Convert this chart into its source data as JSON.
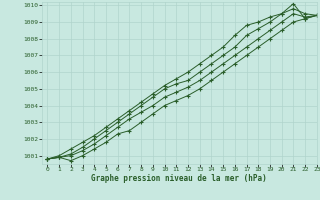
{
  "xlabel": "Graphe pression niveau de la mer (hPa)",
  "background_color": "#c8e8e0",
  "plot_bg_color": "#c8e8e0",
  "grid_color": "#b0d4cc",
  "line_color": "#2a5e2a",
  "xlim": [
    -0.5,
    23
  ],
  "ylim": [
    1000.5,
    1010.2
  ],
  "yticks": [
    1001,
    1002,
    1003,
    1004,
    1005,
    1006,
    1007,
    1008,
    1009,
    1010
  ],
  "xticks": [
    0,
    1,
    2,
    3,
    4,
    5,
    6,
    7,
    8,
    9,
    10,
    11,
    12,
    13,
    14,
    15,
    16,
    17,
    18,
    19,
    20,
    21,
    22,
    23
  ],
  "series": [
    [
      1000.8,
      1000.9,
      1000.7,
      1001.0,
      1001.4,
      1001.8,
      1002.3,
      1002.5,
      1003.0,
      1003.5,
      1004.0,
      1004.3,
      1004.6,
      1005.0,
      1005.5,
      1006.0,
      1006.5,
      1007.0,
      1007.5,
      1008.0,
      1008.5,
      1009.0,
      1009.2,
      1009.4
    ],
    [
      1000.8,
      1000.9,
      1001.0,
      1001.3,
      1001.7,
      1002.2,
      1002.7,
      1003.2,
      1003.6,
      1004.0,
      1004.5,
      1004.8,
      1005.1,
      1005.5,
      1006.0,
      1006.5,
      1007.0,
      1007.5,
      1008.0,
      1008.5,
      1009.0,
      1009.5,
      1009.3,
      1009.4
    ],
    [
      1000.8,
      1000.9,
      1001.1,
      1001.5,
      1002.0,
      1002.5,
      1003.0,
      1003.5,
      1004.0,
      1004.5,
      1005.0,
      1005.3,
      1005.5,
      1006.0,
      1006.5,
      1007.0,
      1007.5,
      1008.2,
      1008.6,
      1009.0,
      1009.5,
      1010.1,
      1009.2,
      1009.4
    ],
    [
      1000.8,
      1001.0,
      1001.4,
      1001.8,
      1002.2,
      1002.7,
      1003.2,
      1003.7,
      1004.2,
      1004.7,
      1005.2,
      1005.6,
      1006.0,
      1006.5,
      1007.0,
      1007.5,
      1008.2,
      1008.8,
      1009.0,
      1009.3,
      1009.5,
      1009.8,
      1009.5,
      1009.4
    ]
  ]
}
